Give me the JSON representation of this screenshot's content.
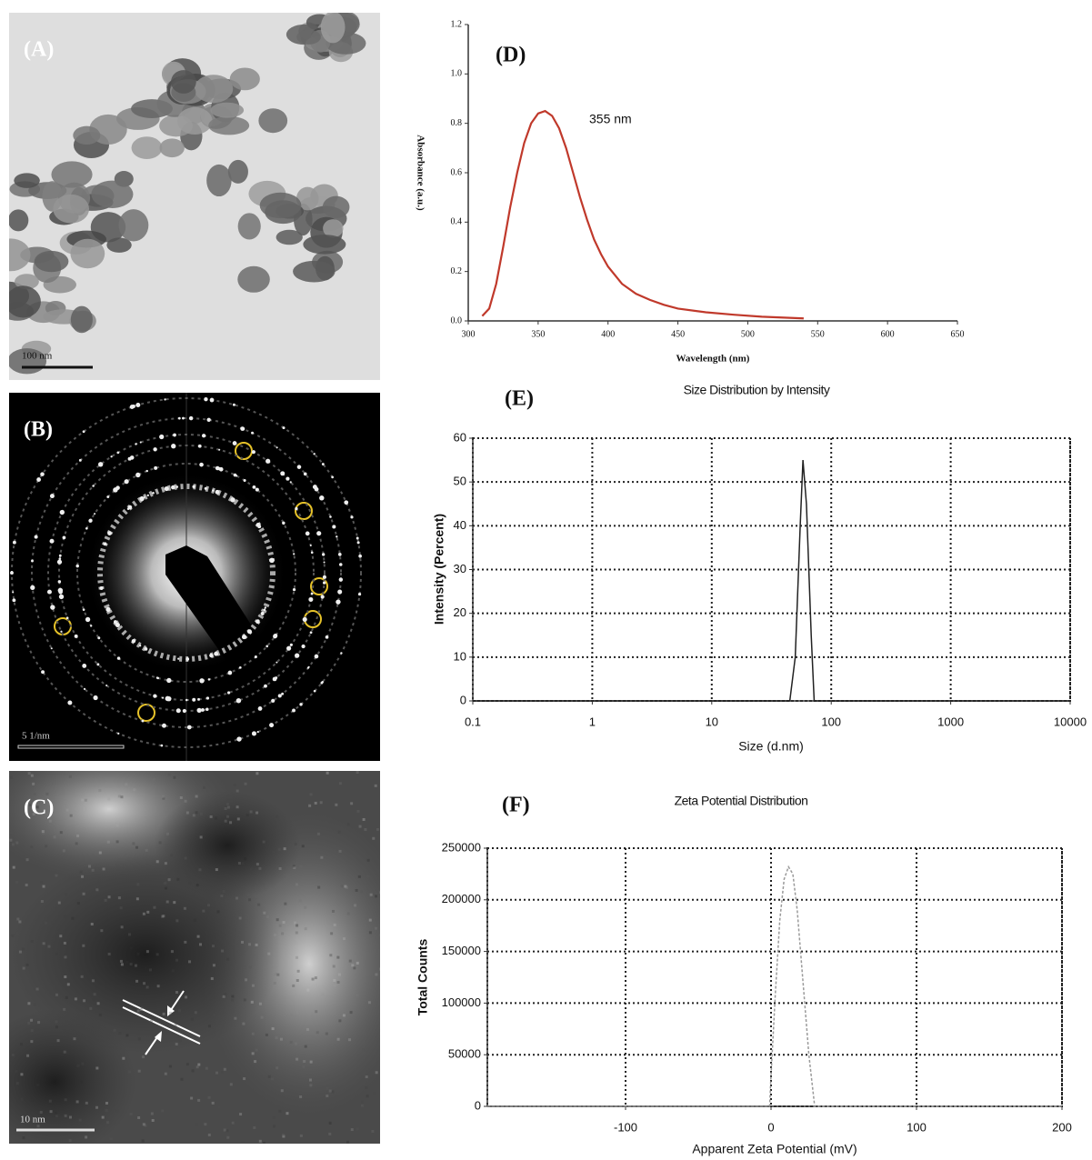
{
  "panels": {
    "A": {
      "label": "(A)",
      "scale": "100 nm"
    },
    "B": {
      "label": "(B)",
      "scale": "5 1/nm"
    },
    "C": {
      "label": "(C)",
      "scale": "10 nm"
    }
  },
  "chart_data": [
    {
      "type": "line",
      "label": "(D)",
      "annotation": "355 nm",
      "x_label": "Wavelength (nm)",
      "y_label": "Absorbance (a.u.)",
      "x": [
        310,
        315,
        320,
        325,
        330,
        335,
        340,
        345,
        350,
        355,
        360,
        365,
        370,
        375,
        380,
        385,
        390,
        395,
        400,
        410,
        420,
        430,
        440,
        450,
        470,
        490,
        510,
        540
      ],
      "series": [
        {
          "color": "#c0392b",
          "values": [
            0.02,
            0.05,
            0.15,
            0.3,
            0.46,
            0.6,
            0.72,
            0.8,
            0.84,
            0.85,
            0.83,
            0.78,
            0.7,
            0.6,
            0.5,
            0.41,
            0.33,
            0.27,
            0.22,
            0.15,
            0.11,
            0.085,
            0.065,
            0.05,
            0.035,
            0.025,
            0.017,
            0.01
          ]
        }
      ],
      "xlim": [
        300,
        650
      ],
      "xticks": [
        300,
        350,
        400,
        450,
        500,
        550,
        600,
        650
      ],
      "ylim": [
        0,
        1.2
      ],
      "yticks": [
        {
          "value": 0,
          "label": "0.0"
        },
        0.2,
        0.4,
        0.6,
        0.8,
        {
          "value": 1,
          "label": "1.0"
        },
        1.2
      ],
      "grid": false
    },
    {
      "type": "line",
      "title": "Size Distribution by Intensity",
      "label": "(E)",
      "x_label": "Size (d.nm)",
      "y_label": "Intensity (Percent)",
      "xscale": "log",
      "x": [
        0.1,
        45,
        50,
        55,
        58,
        62,
        68,
        72,
        10000
      ],
      "series": [
        {
          "color": "#222222",
          "values": [
            0,
            0,
            10,
            40,
            55,
            45,
            15,
            0,
            0
          ]
        }
      ],
      "xlim": [
        0.1,
        10000
      ],
      "xticks": [
        0.1,
        1,
        10,
        100,
        1000,
        10000
      ],
      "ylim": [
        0,
        60
      ],
      "yticks": [
        0,
        10,
        20,
        30,
        40,
        50,
        60
      ],
      "grid": true
    },
    {
      "type": "line",
      "title": "Zeta Potential Distribution",
      "label": "(F)",
      "x_label": "Apparent Zeta Potential (mV)",
      "y_label": "Total Counts",
      "linestyle": "dashed",
      "x": [
        -195,
        -1,
        0,
        3,
        6,
        9,
        12,
        15,
        18,
        22,
        26,
        30,
        200
      ],
      "series": [
        {
          "color": "#9a9a9a",
          "values": [
            0,
            0,
            30000,
            110000,
            180000,
            220000,
            232000,
            225000,
            190000,
            120000,
            50000,
            0,
            0
          ]
        }
      ],
      "xlim": [
        -195,
        200
      ],
      "xticks": [
        -100,
        0,
        100,
        200
      ],
      "ylim": [
        0,
        250000
      ],
      "yticks": [
        0,
        50000,
        100000,
        150000,
        200000,
        250000
      ],
      "grid": true
    }
  ]
}
